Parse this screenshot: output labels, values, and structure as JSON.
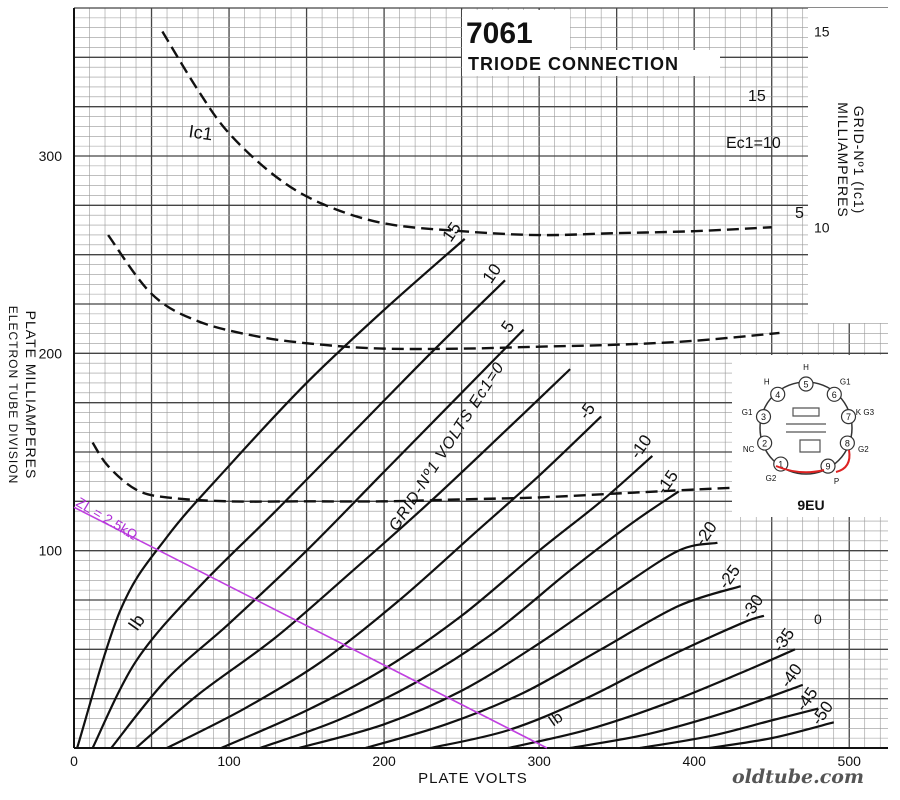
{
  "chart_data": {
    "type": "line",
    "title": "7061",
    "subtitle": "TRIODE CONNECTION",
    "xlabel": "PLATE VOLTS",
    "ylabel_lines": [
      "PLATE MILLIAMPERES",
      "ELECTRON TUBE DIVISION"
    ],
    "ylabel_right_lines": [
      "GRID-Nº1 (Ic1)",
      "MILLIAMPERES"
    ],
    "xlim": [
      0,
      525
    ],
    "ylim": [
      0,
      375
    ],
    "x_ticks": [
      0,
      100,
      200,
      300,
      400,
      500
    ],
    "y_ticks": [
      100,
      200,
      300
    ],
    "y_ticks_labels": [
      "100",
      "200",
      "300"
    ],
    "right_axis": {
      "ylim": [
        -3.3,
        15.6
      ],
      "ticks": [
        "0",
        "5",
        "10",
        "15"
      ],
      "tick_values": [
        0,
        5,
        10,
        15
      ]
    },
    "grid": true,
    "family_label": "GRID-Nº1 VOLTS Ec1=0",
    "curve_marker_ib": [
      "Ib",
      "Ib"
    ],
    "curve_marker_ic1": "Ic1",
    "plate_curves": [
      {
        "name": "15",
        "x": [
          2,
          30,
          60,
          100,
          150,
          200,
          252
        ],
        "y": [
          0,
          70,
          107,
          143,
          185,
          222,
          258
        ]
      },
      {
        "name": "10",
        "x": [
          12,
          40,
          80,
          130,
          180,
          230,
          278
        ],
        "y": [
          0,
          44,
          81,
          120,
          160,
          200,
          237
        ]
      },
      {
        "name": "5",
        "x": [
          24,
          60,
          100,
          150,
          200,
          250,
          290
        ],
        "y": [
          0,
          35,
          63,
          100,
          140,
          180,
          212
        ]
      },
      {
        "name": "0",
        "x": [
          40,
          80,
          130,
          180,
          230,
          280,
          320
        ],
        "y": [
          0,
          27,
          56,
          90,
          125,
          162,
          192
        ]
      },
      {
        "name": "-5",
        "x": [
          60,
          110,
          160,
          210,
          260,
          300,
          340
        ],
        "y": [
          0,
          20,
          44,
          75,
          110,
          138,
          168
        ]
      },
      {
        "name": "-10",
        "x": [
          95,
          150,
          200,
          250,
          300,
          340,
          373
        ],
        "y": [
          0,
          19,
          40,
          67,
          100,
          125,
          148
        ]
      },
      {
        "name": "-15",
        "x": [
          120,
          170,
          220,
          270,
          320,
          360,
          390
        ],
        "y": [
          0,
          14,
          33,
          58,
          90,
          114,
          130
        ]
      },
      {
        "name": "-20",
        "x": [
          145,
          200,
          250,
          300,
          350,
          390,
          415
        ],
        "y": [
          0,
          12,
          29,
          53,
          80,
          100,
          104
        ]
      },
      {
        "name": "-25",
        "x": [
          188,
          240,
          290,
          340,
          390,
          430
        ],
        "y": [
          0,
          12,
          28,
          50,
          72,
          82
        ]
      },
      {
        "name": "-30",
        "x": [
          230,
          280,
          330,
          380,
          430,
          445
        ],
        "y": [
          0,
          9,
          25,
          45,
          63,
          67
        ]
      },
      {
        "name": "-35",
        "x": [
          280,
          330,
          380,
          430,
          465
        ],
        "y": [
          0,
          9,
          22,
          38,
          50
        ]
      },
      {
        "name": "-40",
        "x": [
          320,
          370,
          420,
          470
        ],
        "y": [
          0,
          7,
          18,
          32
        ]
      },
      {
        "name": "-45",
        "x": [
          365,
          410,
          450,
          480
        ],
        "y": [
          0,
          6,
          14,
          20
        ]
      },
      {
        "name": "-50",
        "x": [
          410,
          450,
          490
        ],
        "y": [
          0,
          5,
          13
        ]
      }
    ],
    "grid_current_curves": [
      {
        "name": "15",
        "x": [
          57,
          80,
          100,
          130,
          160,
          200,
          250,
          300,
          350,
          400,
          450
        ],
        "y_ma": [
          15.0,
          13.5,
          12.4,
          11.3,
          10.6,
          10.1,
          9.9,
          9.8,
          9.85,
          9.9,
          10.0
        ]
      },
      {
        "name": "10",
        "x": [
          22,
          50,
          80,
          120,
          160,
          200,
          250,
          300,
          350,
          400,
          455
        ],
        "y_ma": [
          9.8,
          8.3,
          7.6,
          7.2,
          7.0,
          6.9,
          6.9,
          6.95,
          7.0,
          7.1,
          7.3
        ]
      },
      {
        "name": "5",
        "x": [
          12,
          22,
          40,
          60,
          100,
          150,
          200,
          250,
          300,
          350,
          400,
          480
        ],
        "y_ma": [
          4.5,
          3.9,
          3.3,
          3.1,
          3.0,
          3.0,
          3.0,
          3.05,
          3.1,
          3.2,
          3.3,
          3.45
        ]
      }
    ],
    "grid_current_labels": [
      "15",
      "Ec1=10",
      "5"
    ],
    "load_line": {
      "label": "ZL = 2.5kΩ",
      "x": [
        0,
        305
      ],
      "y": [
        122,
        0
      ],
      "color": "#c040e0"
    },
    "socket_diagram": {
      "basing": "9EU",
      "pins": [
        {
          "num": "1",
          "label": "G2"
        },
        {
          "num": "2",
          "label": "NC"
        },
        {
          "num": "3",
          "label": "G1"
        },
        {
          "num": "4",
          "label": "H"
        },
        {
          "num": "5",
          "label": "H"
        },
        {
          "num": "6",
          "label": "G1"
        },
        {
          "num": "7",
          "label": "K G3"
        },
        {
          "num": "8",
          "label": "G2"
        },
        {
          "num": "9",
          "label": "P"
        }
      ],
      "strap_color": "#dd2222"
    },
    "watermark": "oldtube.com"
  }
}
